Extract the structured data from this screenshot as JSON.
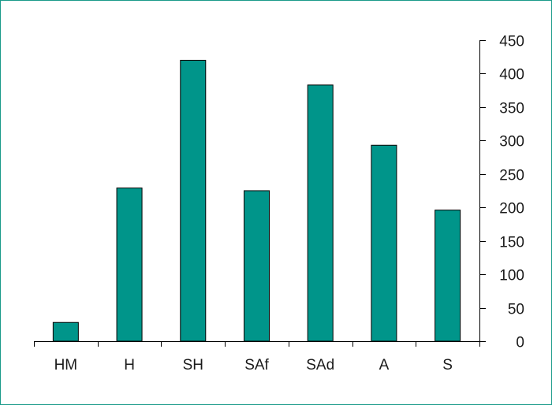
{
  "chart_data": {
    "type": "bar",
    "categories": [
      "HM",
      "H",
      "SH",
      "SAf",
      "SAd",
      "A",
      "S"
    ],
    "values": [
      28,
      229,
      420,
      225,
      383,
      293,
      196
    ],
    "ylim": [
      0,
      450
    ],
    "yticks": [
      0,
      50,
      100,
      150,
      200,
      250,
      300,
      350,
      400,
      450
    ],
    "y_axis_side": "right",
    "grid": false,
    "legend": "none",
    "bar_color": "#00958a",
    "bar_stroke": "#000000",
    "frame_color": "#1a9a8a"
  }
}
